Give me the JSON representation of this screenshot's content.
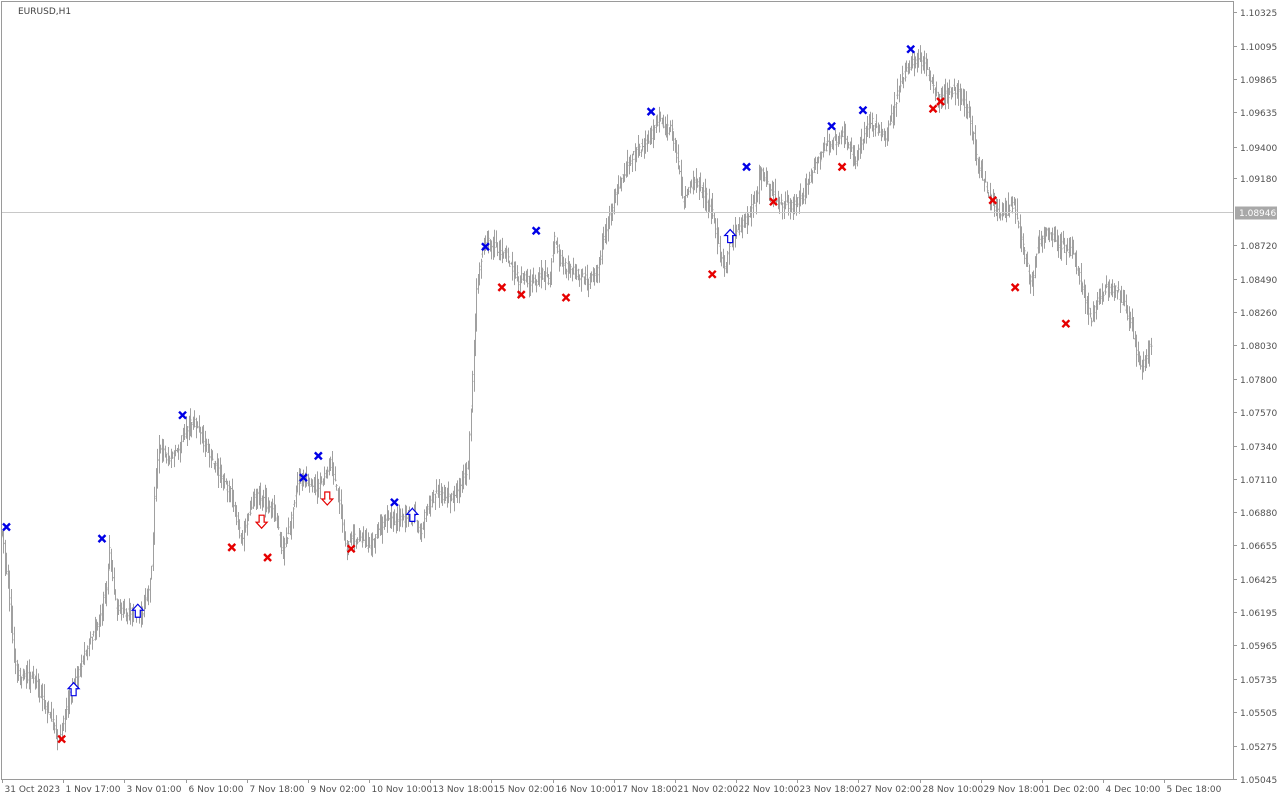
{
  "symbol_label": "EURUSD,H1",
  "current_price": "1.08946",
  "colors": {
    "background": "#ffffff",
    "bars": "#a0a0a0",
    "axis_text": "#505050",
    "price_line": "#c8c8c8",
    "price_tag_bg": "#a8a8a8",
    "price_tag_text": "#ffffff",
    "blue_signal": "#0000e6",
    "red_signal": "#e60000"
  },
  "chart_data": {
    "type": "ohlc",
    "timeframe": "H1",
    "price_axis_ticks": [
      "1.10325",
      "1.10095",
      "1.09865",
      "1.09635",
      "1.09400",
      "1.09180",
      "1.08946",
      "1.08720",
      "1.08490",
      "1.08260",
      "1.08030",
      "1.07800",
      "1.07570",
      "1.07340",
      "1.07110",
      "1.06880",
      "1.06655",
      "1.06425",
      "1.06195",
      "1.05965",
      "1.05735",
      "1.05505",
      "1.05275",
      "1.05045"
    ],
    "y_range": [
      1.05045,
      1.10395
    ],
    "x_range_hours": [
      0,
      825
    ],
    "time_axis_ticks": [
      {
        "label": "31 Oct 2023",
        "hour": 0
      },
      {
        "label": "1 Nov 17:00",
        "hour": 41
      },
      {
        "label": "3 Nov 01:00",
        "hour": 82
      },
      {
        "label": "6 Nov 10:00",
        "hour": 123
      },
      {
        "label": "7 Nov 18:00",
        "hour": 164
      },
      {
        "label": "9 Nov 02:00",
        "hour": 205
      },
      {
        "label": "10 Nov 10:00",
        "hour": 246
      },
      {
        "label": "13 Nov 18:00",
        "hour": 287
      },
      {
        "label": "15 Nov 02:00",
        "hour": 328
      },
      {
        "label": "16 Nov 10:00",
        "hour": 369
      },
      {
        "label": "17 Nov 18:00",
        "hour": 410
      },
      {
        "label": "21 Nov 02:00",
        "hour": 451
      },
      {
        "label": "22 Nov 10:00",
        "hour": 492
      },
      {
        "label": "23 Nov 18:00",
        "hour": 533
      },
      {
        "label": "27 Nov 02:00",
        "hour": 574
      },
      {
        "label": "28 Nov 10:00",
        "hour": 615
      },
      {
        "label": "29 Nov 18:00",
        "hour": 656
      },
      {
        "label": "1 Dec 02:00",
        "hour": 697
      },
      {
        "label": "4 Dec 10:00",
        "hour": 738
      },
      {
        "label": "5 Dec 18:00",
        "hour": 779
      }
    ],
    "price_path": [
      [
        0,
        1.0672
      ],
      [
        4,
        1.064
      ],
      [
        8,
        1.059
      ],
      [
        10,
        1.0578
      ],
      [
        20,
        1.0575
      ],
      [
        27,
        1.056
      ],
      [
        33,
        1.0545
      ],
      [
        38,
        1.053
      ],
      [
        42,
        1.0548
      ],
      [
        45,
        1.0563
      ],
      [
        52,
        1.058
      ],
      [
        58,
        1.0598
      ],
      [
        64,
        1.061
      ],
      [
        70,
        1.0638
      ],
      [
        72,
        1.0663
      ],
      [
        76,
        1.0625
      ],
      [
        82,
        1.0618
      ],
      [
        88,
        1.062
      ],
      [
        93,
        1.0615
      ],
      [
        97,
        1.063
      ],
      [
        100,
        1.065
      ],
      [
        102,
        1.07
      ],
      [
        105,
        1.0735
      ],
      [
        110,
        1.0725
      ],
      [
        116,
        1.073
      ],
      [
        122,
        1.0742
      ],
      [
        127,
        1.0752
      ],
      [
        132,
        1.0745
      ],
      [
        137,
        1.0732
      ],
      [
        142,
        1.0722
      ],
      [
        148,
        1.071
      ],
      [
        154,
        1.07
      ],
      [
        160,
        1.067
      ],
      [
        164,
        1.0682
      ],
      [
        170,
        1.07
      ],
      [
        176,
        1.0695
      ],
      [
        182,
        1.069
      ],
      [
        188,
        1.066
      ],
      [
        193,
        1.068
      ],
      [
        198,
        1.071
      ],
      [
        204,
        1.071
      ],
      [
        210,
        1.0705
      ],
      [
        214,
        1.0708
      ],
      [
        220,
        1.0722
      ],
      [
        226,
        1.0695
      ],
      [
        230,
        1.0665
      ],
      [
        234,
        1.0672
      ],
      [
        240,
        1.067
      ],
      [
        246,
        1.0664
      ],
      [
        252,
        1.0675
      ],
      [
        258,
        1.0683
      ],
      [
        264,
        1.0683
      ],
      [
        270,
        1.0685
      ],
      [
        276,
        1.069
      ],
      [
        280,
        1.067
      ],
      [
        284,
        1.069
      ],
      [
        290,
        1.07
      ],
      [
        296,
        1.0698
      ],
      [
        302,
        1.0698
      ],
      [
        306,
        1.0704
      ],
      [
        312,
        1.072
      ],
      [
        315,
        1.078
      ],
      [
        318,
        1.084
      ],
      [
        322,
        1.087
      ],
      [
        326,
        1.0875
      ],
      [
        332,
        1.087
      ],
      [
        338,
        1.0866
      ],
      [
        342,
        1.0855
      ],
      [
        346,
        1.0848
      ],
      [
        350,
        1.085
      ],
      [
        354,
        1.0844
      ],
      [
        358,
        1.0848
      ],
      [
        362,
        1.0852
      ],
      [
        366,
        1.0848
      ],
      [
        370,
        1.0875
      ],
      [
        374,
        1.0862
      ],
      [
        380,
        1.0855
      ],
      [
        386,
        1.0852
      ],
      [
        392,
        1.0848
      ],
      [
        398,
        1.085
      ],
      [
        404,
        1.088
      ],
      [
        408,
        1.0895
      ],
      [
        412,
        1.091
      ],
      [
        418,
        1.0925
      ],
      [
        424,
        1.0935
      ],
      [
        430,
        1.0942
      ],
      [
        436,
        1.095
      ],
      [
        440,
        1.096
      ],
      [
        445,
        1.095
      ],
      [
        448,
        1.0955
      ],
      [
        452,
        1.0935
      ],
      [
        456,
        1.0905
      ],
      [
        460,
        1.0912
      ],
      [
        466,
        1.0915
      ],
      [
        472,
        1.0905
      ],
      [
        476,
        1.0895
      ],
      [
        480,
        1.087
      ],
      [
        484,
        1.0855
      ],
      [
        488,
        1.0875
      ],
      [
        494,
        1.0885
      ],
      [
        498,
        1.089
      ],
      [
        504,
        1.09
      ],
      [
        508,
        1.0922
      ],
      [
        512,
        1.0918
      ],
      [
        518,
        1.0905
      ],
      [
        524,
        1.09
      ],
      [
        530,
        1.09
      ],
      [
        536,
        1.0904
      ],
      [
        540,
        1.0915
      ],
      [
        546,
        1.093
      ],
      [
        552,
        1.094
      ],
      [
        558,
        1.0944
      ],
      [
        564,
        1.095
      ],
      [
        568,
        1.094
      ],
      [
        572,
        1.0928
      ],
      [
        576,
        1.0945
      ],
      [
        582,
        1.0958
      ],
      [
        588,
        1.095
      ],
      [
        592,
        1.0945
      ],
      [
        596,
        1.096
      ],
      [
        602,
        1.0985
      ],
      [
        608,
        1.0995
      ],
      [
        612,
        1.1
      ],
      [
        618,
        1.0998
      ],
      [
        622,
        1.0985
      ],
      [
        626,
        1.0975
      ],
      [
        632,
        1.0975
      ],
      [
        638,
        1.098
      ],
      [
        642,
        1.0975
      ],
      [
        648,
        1.0965
      ],
      [
        652,
        1.094
      ],
      [
        656,
        1.092
      ],
      [
        662,
        1.0905
      ],
      [
        668,
        1.0892
      ],
      [
        674,
        1.0896
      ],
      [
        678,
        1.09
      ],
      [
        682,
        1.088
      ],
      [
        686,
        1.086
      ],
      [
        690,
        1.0845
      ],
      [
        694,
        1.0875
      ],
      [
        700,
        1.088
      ],
      [
        706,
        1.0875
      ],
      [
        712,
        1.087
      ],
      [
        718,
        1.0866
      ],
      [
        722,
        1.085
      ],
      [
        726,
        1.0835
      ],
      [
        730,
        1.082
      ],
      [
        734,
        1.0835
      ],
      [
        740,
        1.0842
      ],
      [
        746,
        1.0842
      ],
      [
        752,
        1.083
      ],
      [
        756,
        1.082
      ],
      [
        760,
        1.0798
      ],
      [
        764,
        1.079
      ],
      [
        768,
        1.0797
      ],
      [
        770,
        1.0805
      ]
    ],
    "signals": [
      {
        "type": "cross",
        "color": "blue",
        "hour": 3,
        "price": 1.0678
      },
      {
        "type": "cross",
        "color": "red",
        "hour": 40,
        "price": 1.0532
      },
      {
        "type": "arrow_up",
        "color": "blue",
        "hour": 48,
        "price": 1.0566
      },
      {
        "type": "cross",
        "color": "blue",
        "hour": 67,
        "price": 1.067
      },
      {
        "type": "arrow_up",
        "color": "blue",
        "hour": 91,
        "price": 1.062
      },
      {
        "type": "cross",
        "color": "blue",
        "hour": 121,
        "price": 1.0755
      },
      {
        "type": "cross",
        "color": "red",
        "hour": 154,
        "price": 1.0664
      },
      {
        "type": "arrow_down",
        "color": "red",
        "hour": 174,
        "price": 1.0682
      },
      {
        "type": "cross",
        "color": "red",
        "hour": 178,
        "price": 1.0657
      },
      {
        "type": "cross",
        "color": "blue",
        "hour": 202,
        "price": 1.0712
      },
      {
        "type": "cross",
        "color": "blue",
        "hour": 212,
        "price": 1.0727
      },
      {
        "type": "arrow_down",
        "color": "red",
        "hour": 218,
        "price": 1.0698
      },
      {
        "type": "cross",
        "color": "red",
        "hour": 234,
        "price": 1.0663
      },
      {
        "type": "cross",
        "color": "blue",
        "hour": 263,
        "price": 1.0695
      },
      {
        "type": "arrow_up",
        "color": "blue",
        "hour": 275,
        "price": 1.0686
      },
      {
        "type": "cross",
        "color": "blue",
        "hour": 324,
        "price": 1.0871
      },
      {
        "type": "cross",
        "color": "red",
        "hour": 335,
        "price": 1.0843
      },
      {
        "type": "cross",
        "color": "red",
        "hour": 348,
        "price": 1.0838
      },
      {
        "type": "cross",
        "color": "blue",
        "hour": 358,
        "price": 1.0882
      },
      {
        "type": "cross",
        "color": "red",
        "hour": 378,
        "price": 1.0836
      },
      {
        "type": "cross",
        "color": "blue",
        "hour": 435,
        "price": 1.0964
      },
      {
        "type": "cross",
        "color": "red",
        "hour": 476,
        "price": 1.0852
      },
      {
        "type": "arrow_up",
        "color": "blue",
        "hour": 488,
        "price": 1.0878
      },
      {
        "type": "cross",
        "color": "blue",
        "hour": 499,
        "price": 1.0926
      },
      {
        "type": "cross",
        "color": "red",
        "hour": 517,
        "price": 1.0902
      },
      {
        "type": "cross",
        "color": "red",
        "hour": 563,
        "price": 1.0926
      },
      {
        "type": "cross",
        "color": "blue",
        "hour": 556,
        "price": 1.0954
      },
      {
        "type": "cross",
        "color": "blue",
        "hour": 577,
        "price": 1.0965
      },
      {
        "type": "cross",
        "color": "blue",
        "hour": 609,
        "price": 1.1007
      },
      {
        "type": "cross",
        "color": "red",
        "hour": 624,
        "price": 1.0966
      },
      {
        "type": "cross",
        "color": "red",
        "hour": 629,
        "price": 1.0971
      },
      {
        "type": "cross",
        "color": "red",
        "hour": 664,
        "price": 1.0903
      },
      {
        "type": "cross",
        "color": "red",
        "hour": 679,
        "price": 1.0843
      },
      {
        "type": "cross",
        "color": "red",
        "hour": 713,
        "price": 1.0818
      }
    ]
  }
}
